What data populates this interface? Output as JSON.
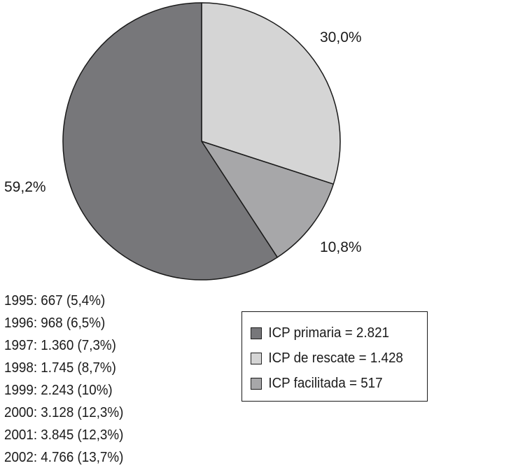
{
  "chart_data": {
    "type": "pie",
    "title": "",
    "slices": [
      {
        "label": "ICP de rescate",
        "percent": 30.0,
        "value_text": "30,0%",
        "color": "#d5d5d5"
      },
      {
        "label": "ICP facilitada",
        "percent": 10.8,
        "value_text": "10,8%",
        "color": "#a7a7a9"
      },
      {
        "label": "ICP primaria",
        "percent": 59.2,
        "value_text": "59,2%",
        "color": "#77777a"
      }
    ],
    "legend": {
      "placement": "bottom-right",
      "entries": [
        {
          "text": "ICP primaria = 2.821",
          "color": "#77777a"
        },
        {
          "text": "ICP de rescate = 1.428",
          "color": "#d5d5d5"
        },
        {
          "text": "ICP facilitada = 517",
          "color": "#a7a7a9"
        }
      ]
    },
    "annotations": [
      "1995: 667 (5,4%)",
      "1996: 968 (6,5%)",
      "1997: 1.360 (7,3%)",
      "1998: 1.745 (8,7%)",
      "1999: 2.243 (10%)",
      "2000: 3.128 (12,3%)",
      "2001: 3.845 (12,3%)",
      "2002: 4.766 (13,7%)"
    ],
    "outline_color": "#1a1a1a"
  }
}
